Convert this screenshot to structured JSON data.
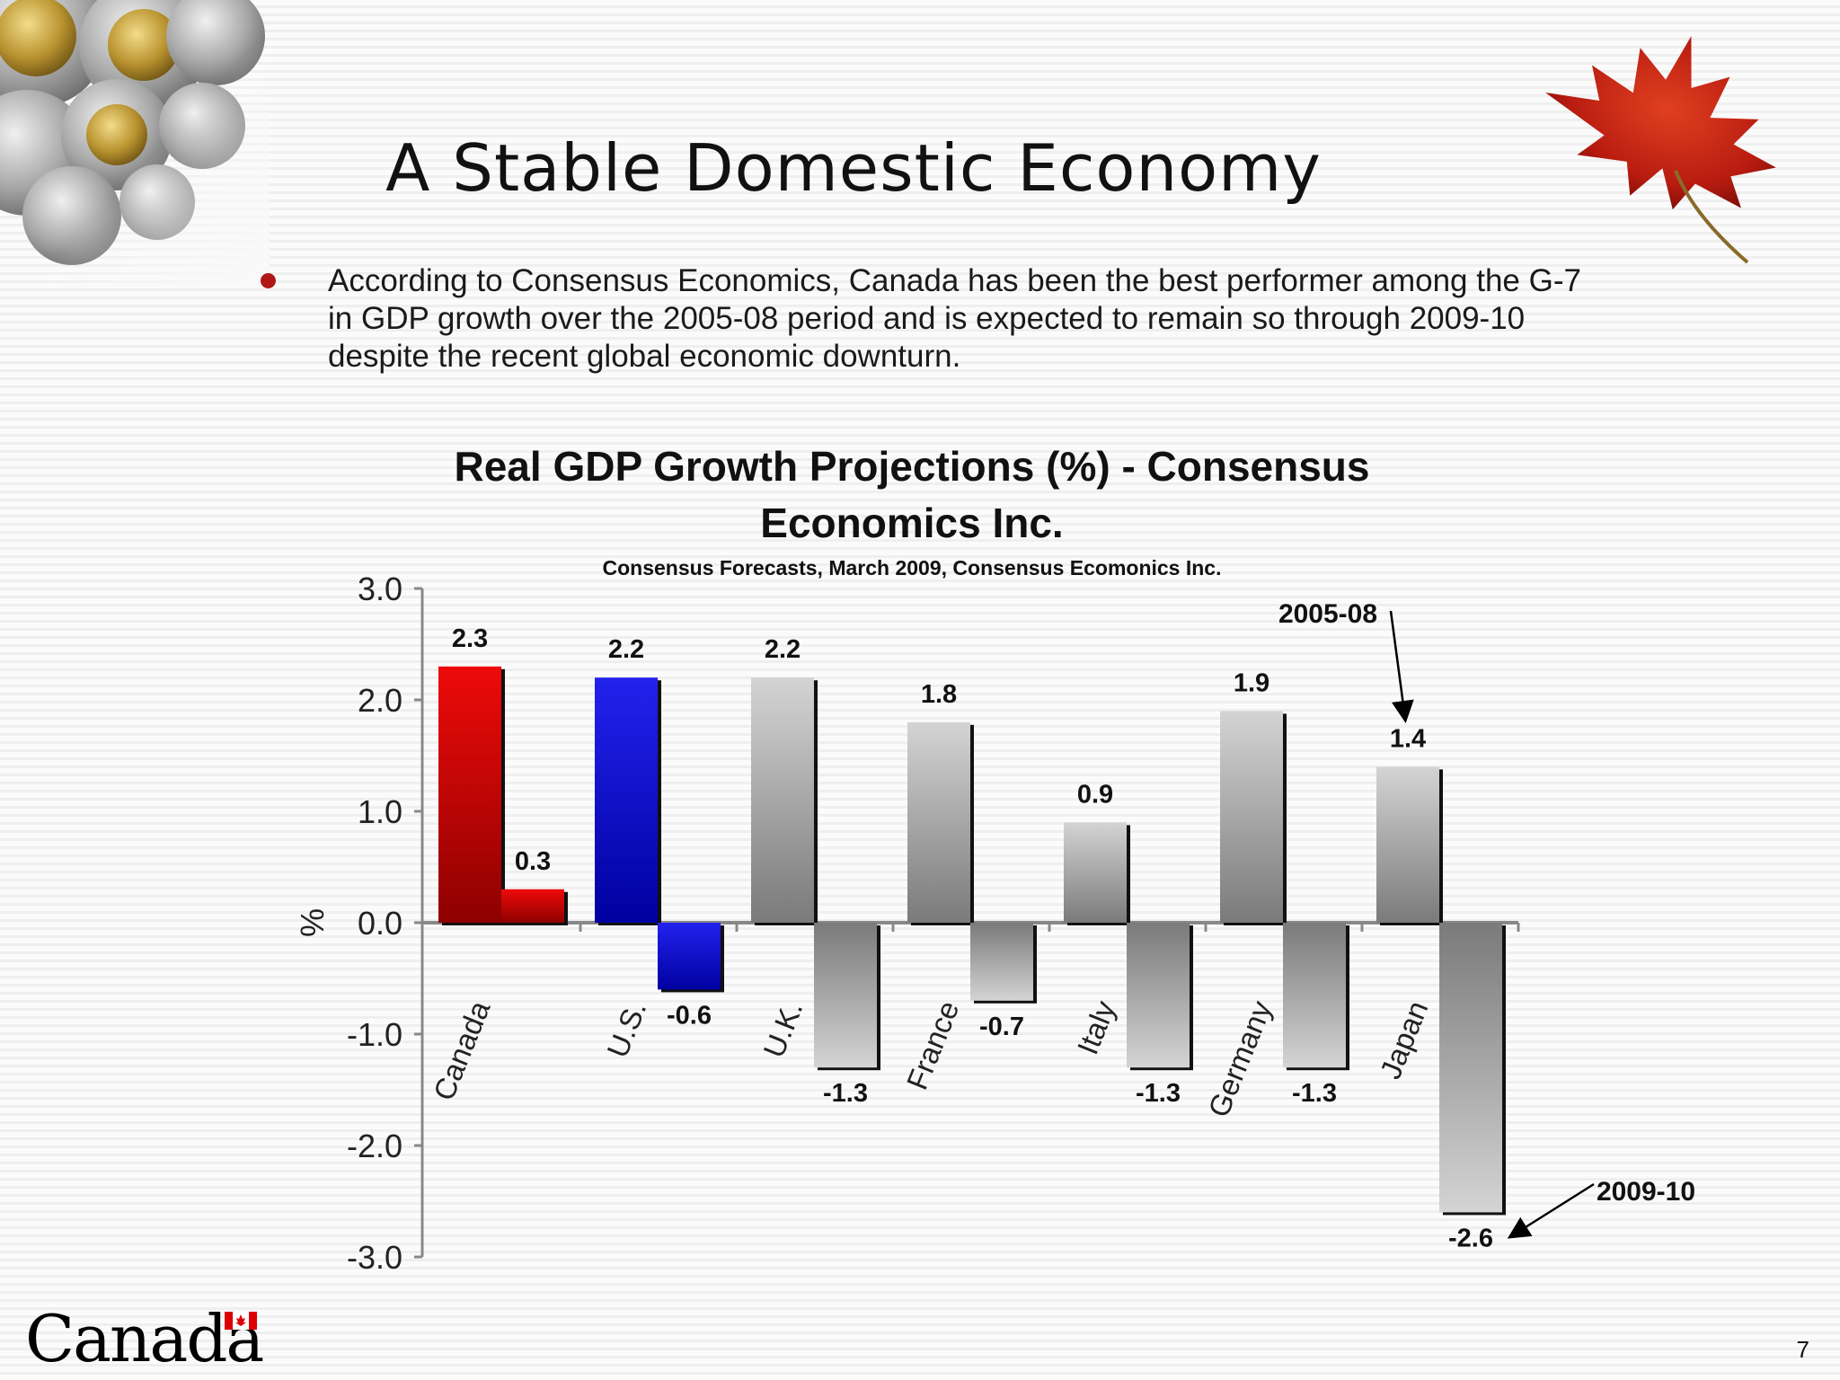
{
  "slide": {
    "title": "A Stable Domestic Economy",
    "bullet": "According to Consensus Economics, Canada has been the best performer among the G-7 in GDP growth over the 2005-08 period and is expected to remain so through 2009-10 despite the recent global economic downturn.",
    "page_number": "7",
    "logo_text": "Canada"
  },
  "chart_data": {
    "type": "bar",
    "title_line1": "Real GDP Growth Projections (%) - Consensus",
    "title_line2": "Economics Inc.",
    "subtitle": "Consensus Forecasts, March 2009, Consensus Ecomonics Inc.",
    "ylabel": "%",
    "ylim": [
      -3.0,
      3.0
    ],
    "yticks": [
      "3.0",
      "2.0",
      "1.0",
      "0.0",
      "-1.0",
      "-2.0",
      "-3.0"
    ],
    "categories": [
      "Canada",
      "U.S.",
      "U.K.",
      "France",
      "Italy",
      "Germany",
      "Japan"
    ],
    "series": [
      {
        "name": "2005-08",
        "values": [
          2.3,
          2.2,
          2.2,
          1.8,
          0.9,
          1.9,
          1.4
        ]
      },
      {
        "name": "2009-10",
        "values": [
          0.3,
          -0.6,
          -1.3,
          -0.7,
          -1.3,
          -1.3,
          -2.6
        ]
      }
    ],
    "colors": {
      "canada_top": "#ee0a0a",
      "canada_bottom": "#8e0000",
      "us_top": "#2222ee",
      "us_bottom": "#0000a0",
      "other_top": "#d4d4d4",
      "other_bottom": "#7a7a7a",
      "shadow": "#111111"
    },
    "grid": false,
    "legend": "annotations with arrows"
  }
}
